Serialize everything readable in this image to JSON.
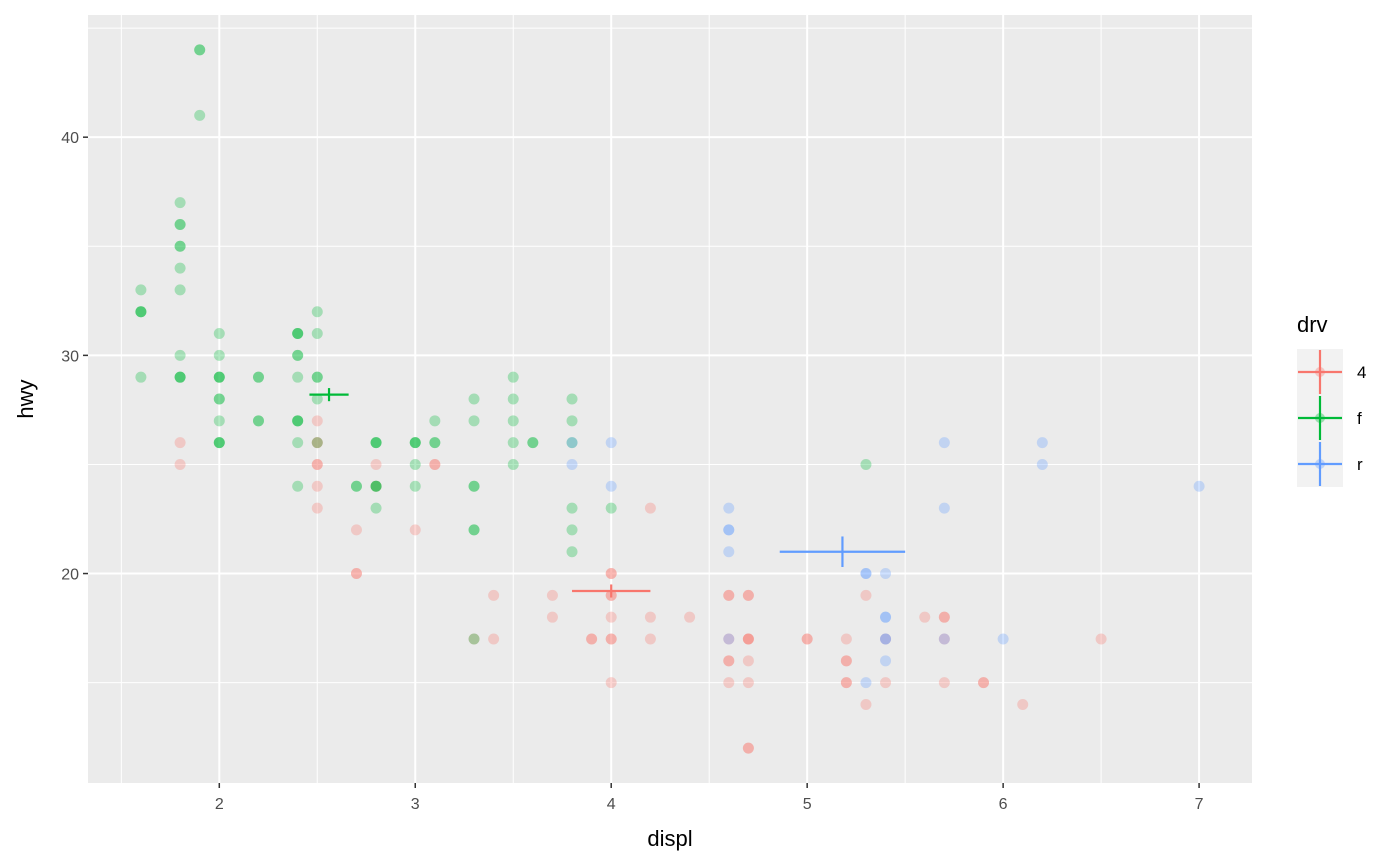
{
  "chart_data": {
    "type": "scatter",
    "title": "",
    "xlabel": "displ",
    "ylabel": "hwy",
    "xlim": [
      1.33,
      7.27
    ],
    "ylim": [
      10.4,
      45.6
    ],
    "x_major_ticks": [
      2,
      3,
      4,
      5,
      6,
      7
    ],
    "x_tick_labels": [
      "2",
      "3",
      "4",
      "5",
      "6",
      "7"
    ],
    "x_minor_ticks": [
      1.5,
      2.5,
      3.5,
      4.5,
      5.5,
      6.5
    ],
    "y_major_ticks": [
      20,
      30,
      40
    ],
    "y_tick_labels": [
      "20",
      "30",
      "40"
    ],
    "y_minor_ticks": [
      15,
      25,
      35,
      45
    ],
    "grid": true,
    "legend": {
      "title": "drv",
      "placement": "right"
    },
    "point_alpha": 0.3,
    "series": [
      {
        "name": "4",
        "color": "#F8766D",
        "summary": {
          "x_mean": 4.0,
          "x_sd": 0.1,
          "y_mean": 19.2,
          "y_sd": 0.3
        },
        "points": [
          [
            1.8,
            26
          ],
          [
            1.8,
            25
          ],
          [
            2.5,
            27
          ],
          [
            2.5,
            26
          ],
          [
            2.5,
            26
          ],
          [
            2.5,
            25
          ],
          [
            2.5,
            25
          ],
          [
            2.5,
            24
          ],
          [
            2.5,
            23
          ],
          [
            2.7,
            22
          ],
          [
            2.7,
            20
          ],
          [
            2.7,
            20
          ],
          [
            2.8,
            25
          ],
          [
            2.8,
            24
          ],
          [
            3.0,
            22
          ],
          [
            3.1,
            25
          ],
          [
            3.1,
            25
          ],
          [
            3.3,
            17
          ],
          [
            3.4,
            19
          ],
          [
            3.4,
            17
          ],
          [
            3.7,
            19
          ],
          [
            3.7,
            18
          ],
          [
            3.9,
            17
          ],
          [
            3.9,
            17
          ],
          [
            4.0,
            20
          ],
          [
            4.0,
            20
          ],
          [
            4.0,
            19
          ],
          [
            4.0,
            19
          ],
          [
            4.0,
            18
          ],
          [
            4.0,
            17
          ],
          [
            4.0,
            17
          ],
          [
            4.0,
            15
          ],
          [
            4.2,
            23
          ],
          [
            4.2,
            18
          ],
          [
            4.2,
            17
          ],
          [
            4.4,
            18
          ],
          [
            4.6,
            19
          ],
          [
            4.6,
            19
          ],
          [
            4.6,
            17
          ],
          [
            4.6,
            16
          ],
          [
            4.6,
            16
          ],
          [
            4.6,
            15
          ],
          [
            4.7,
            19
          ],
          [
            4.7,
            19
          ],
          [
            4.7,
            17
          ],
          [
            4.7,
            17
          ],
          [
            4.7,
            17
          ],
          [
            4.7,
            16
          ],
          [
            4.7,
            15
          ],
          [
            4.7,
            12
          ],
          [
            4.7,
            12
          ],
          [
            5.0,
            17
          ],
          [
            5.0,
            17
          ],
          [
            5.2,
            17
          ],
          [
            5.2,
            16
          ],
          [
            5.2,
            16
          ],
          [
            5.2,
            15
          ],
          [
            5.2,
            15
          ],
          [
            5.3,
            19
          ],
          [
            5.3,
            14
          ],
          [
            5.4,
            17
          ],
          [
            5.4,
            15
          ],
          [
            5.6,
            18
          ],
          [
            5.7,
            18
          ],
          [
            5.7,
            18
          ],
          [
            5.7,
            17
          ],
          [
            5.7,
            15
          ],
          [
            5.9,
            15
          ],
          [
            5.9,
            15
          ],
          [
            6.1,
            14
          ],
          [
            6.5,
            17
          ]
        ]
      },
      {
        "name": "f",
        "color": "#00BA38",
        "summary": {
          "x_mean": 2.56,
          "x_sd": 0.05,
          "y_mean": 28.2,
          "y_sd": 0.3
        },
        "points": [
          [
            1.6,
            33
          ],
          [
            1.6,
            32
          ],
          [
            1.6,
            32
          ],
          [
            1.6,
            32
          ],
          [
            1.6,
            29
          ],
          [
            1.8,
            37
          ],
          [
            1.8,
            36
          ],
          [
            1.8,
            36
          ],
          [
            1.8,
            35
          ],
          [
            1.8,
            35
          ],
          [
            1.8,
            34
          ],
          [
            1.8,
            33
          ],
          [
            1.8,
            30
          ],
          [
            1.8,
            29
          ],
          [
            1.8,
            29
          ],
          [
            1.8,
            29
          ],
          [
            1.9,
            44
          ],
          [
            1.9,
            44
          ],
          [
            1.9,
            41
          ],
          [
            2.0,
            31
          ],
          [
            2.0,
            30
          ],
          [
            2.0,
            29
          ],
          [
            2.0,
            29
          ],
          [
            2.0,
            29
          ],
          [
            2.0,
            28
          ],
          [
            2.0,
            28
          ],
          [
            2.0,
            27
          ],
          [
            2.0,
            26
          ],
          [
            2.0,
            26
          ],
          [
            2.0,
            26
          ],
          [
            2.2,
            29
          ],
          [
            2.2,
            29
          ],
          [
            2.2,
            27
          ],
          [
            2.2,
            27
          ],
          [
            2.4,
            31
          ],
          [
            2.4,
            31
          ],
          [
            2.4,
            31
          ],
          [
            2.4,
            30
          ],
          [
            2.4,
            30
          ],
          [
            2.4,
            29
          ],
          [
            2.4,
            27
          ],
          [
            2.4,
            27
          ],
          [
            2.4,
            27
          ],
          [
            2.4,
            26
          ],
          [
            2.4,
            24
          ],
          [
            2.5,
            32
          ],
          [
            2.5,
            31
          ],
          [
            2.5,
            29
          ],
          [
            2.5,
            29
          ],
          [
            2.5,
            28
          ],
          [
            2.5,
            26
          ],
          [
            2.7,
            24
          ],
          [
            2.7,
            24
          ],
          [
            2.8,
            26
          ],
          [
            2.8,
            26
          ],
          [
            2.8,
            26
          ],
          [
            2.8,
            24
          ],
          [
            2.8,
            24
          ],
          [
            2.8,
            24
          ],
          [
            2.8,
            23
          ],
          [
            3.0,
            26
          ],
          [
            3.0,
            26
          ],
          [
            3.0,
            26
          ],
          [
            3.0,
            25
          ],
          [
            3.0,
            24
          ],
          [
            3.1,
            27
          ],
          [
            3.1,
            26
          ],
          [
            3.1,
            26
          ],
          [
            3.3,
            28
          ],
          [
            3.3,
            27
          ],
          [
            3.3,
            24
          ],
          [
            3.3,
            24
          ],
          [
            3.3,
            22
          ],
          [
            3.3,
            22
          ],
          [
            3.3,
            17
          ],
          [
            3.5,
            29
          ],
          [
            3.5,
            28
          ],
          [
            3.5,
            27
          ],
          [
            3.5,
            26
          ],
          [
            3.5,
            25
          ],
          [
            3.6,
            26
          ],
          [
            3.6,
            26
          ],
          [
            3.8,
            28
          ],
          [
            3.8,
            27
          ],
          [
            3.8,
            26
          ],
          [
            3.8,
            23
          ],
          [
            3.8,
            22
          ],
          [
            3.8,
            21
          ],
          [
            4.0,
            23
          ],
          [
            5.3,
            25
          ]
        ]
      },
      {
        "name": "r",
        "color": "#619CFF",
        "summary": {
          "x_mean": 5.18,
          "x_sd": 0.16,
          "y_mean": 21.0,
          "y_sd": 0.7
        },
        "points": [
          [
            3.8,
            26
          ],
          [
            3.8,
            25
          ],
          [
            4.0,
            26
          ],
          [
            4.0,
            24
          ],
          [
            4.6,
            23
          ],
          [
            4.6,
            22
          ],
          [
            4.6,
            22
          ],
          [
            4.6,
            21
          ],
          [
            4.6,
            17
          ],
          [
            5.3,
            20
          ],
          [
            5.3,
            20
          ],
          [
            5.3,
            15
          ],
          [
            5.4,
            20
          ],
          [
            5.4,
            18
          ],
          [
            5.4,
            18
          ],
          [
            5.4,
            17
          ],
          [
            5.4,
            17
          ],
          [
            5.4,
            16
          ],
          [
            5.7,
            26
          ],
          [
            5.7,
            23
          ],
          [
            5.7,
            17
          ],
          [
            6.0,
            17
          ],
          [
            6.2,
            26
          ],
          [
            6.2,
            25
          ],
          [
            7.0,
            24
          ]
        ]
      }
    ]
  }
}
